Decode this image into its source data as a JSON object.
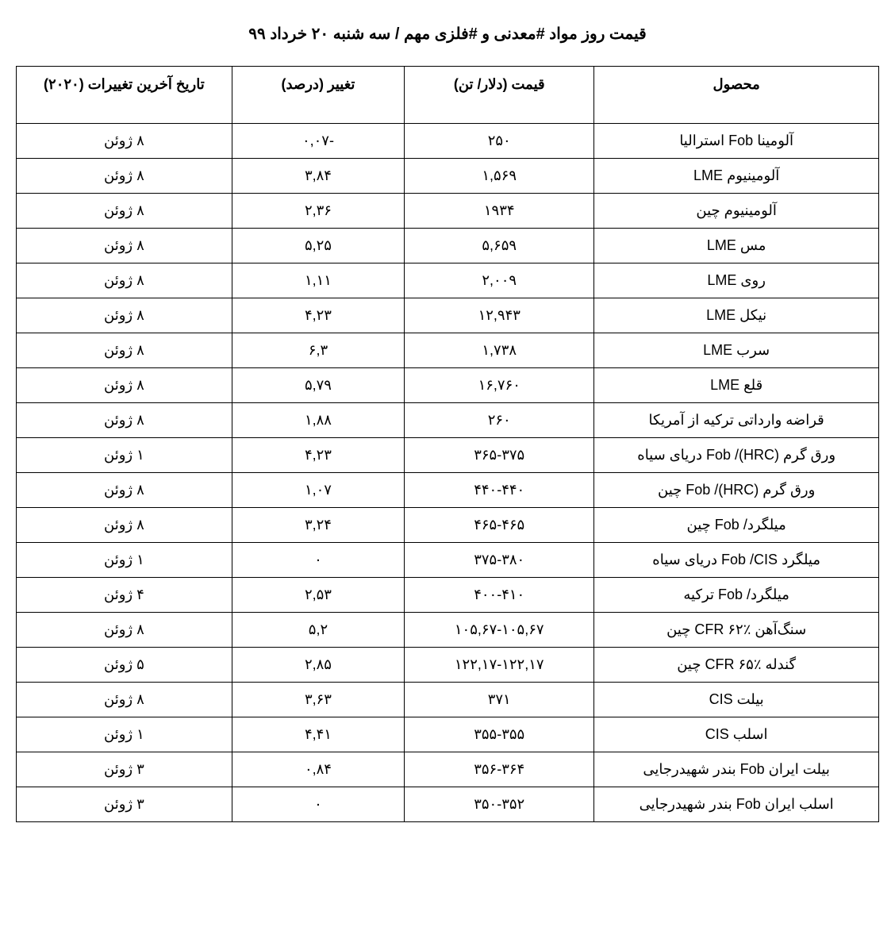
{
  "title": "قیمت روز مواد #معدنی و #فلزی مهم / سه شنبه ۲۰ خرداد ۹۹",
  "table": {
    "columns": [
      "محصول",
      "قیمت (دلار/ تن)",
      "تغییر (درصد)",
      "تاریخ آخرین تغییرات (۲۰۲۰)"
    ],
    "col_widths": [
      "33%",
      "22%",
      "20%",
      "25%"
    ],
    "rows": [
      [
        "آلومینا Fob استرالیا",
        "۲۵۰",
        "-۰,۰۷",
        "۸ ژوئن"
      ],
      [
        "آلومینیوم LME",
        "۱,۵۶۹",
        "۳,۸۴",
        "۸ ژوئن"
      ],
      [
        "آلومینیوم چین",
        "۱۹۳۴",
        "۲,۳۶",
        "۸ ژوئن"
      ],
      [
        "مس LME",
        "۵,۶۵۹",
        "۵,۲۵",
        "۸ ژوئن"
      ],
      [
        "روی LME",
        "۲,۰۰۹",
        "۱,۱۱",
        "۸ ژوئن"
      ],
      [
        "نیکل LME",
        "۱۲,۹۴۳",
        "۴,۲۳",
        "۸ ژوئن"
      ],
      [
        "سرب LME",
        "۱,۷۳۸",
        "۶,۳",
        "۸ ژوئن"
      ],
      [
        "قلع LME",
        "۱۶,۷۶۰",
        "۵,۷۹",
        "۸ ژوئن"
      ],
      [
        "قراضه وارداتی ترکیه از آمریکا",
        "۲۶۰",
        "۱,۸۸",
        "۸ ژوئن"
      ],
      [
        "ورق گرم (HRC)/ Fob دریای سیاه",
        "۳۶۵-۳۷۵",
        "۴,۲۳",
        "۱ ژوئن"
      ],
      [
        "ورق گرم (HRC)/ Fob چین",
        "۴۴۰-۴۴۰",
        "۱,۰۷",
        "۸ ژوئن"
      ],
      [
        "میلگرد/ Fob چین",
        "۴۶۵-۴۶۵",
        "۳,۲۴",
        "۸ ژوئن"
      ],
      [
        "میلگرد Fob /CIS دریای سیاه",
        "۳۷۵-۳۸۰",
        "۰",
        "۱ ژوئن"
      ],
      [
        "میلگرد/ Fob ترکیه",
        "۴۰۰-۴۱۰",
        "۲,۵۳",
        "۴ ژوئن"
      ],
      [
        "سنگ‌آهن ٪۶۲ CFR چین",
        "۱۰۵,۶۷-۱۰۵,۶۷",
        "۵,۲",
        "۸ ژوئن"
      ],
      [
        "گندله ٪۶۵ CFR چین",
        "۱۲۲,۱۷-۱۲۲,۱۷",
        "۲,۸۵",
        "۵ ژوئن"
      ],
      [
        "بیلت CIS",
        "۳۷۱",
        "۳,۶۳",
        "۸ ژوئن"
      ],
      [
        "اسلب CIS",
        "۳۵۵-۳۵۵",
        "۴,۴۱",
        "۱ ژوئن"
      ],
      [
        "بیلت ایران Fob بندر شهیدرجایی",
        "۳۵۶-۳۶۴",
        "۰,۸۴",
        "۳ ژوئن"
      ],
      [
        "اسلب ایران Fob بندر شهیدرجایی",
        "۳۵۰-۳۵۲",
        "۰",
        "۳ ژوئن"
      ]
    ],
    "border_color": "#000000",
    "background_color": "#ffffff",
    "header_fontsize": 18,
    "cell_fontsize": 18
  }
}
